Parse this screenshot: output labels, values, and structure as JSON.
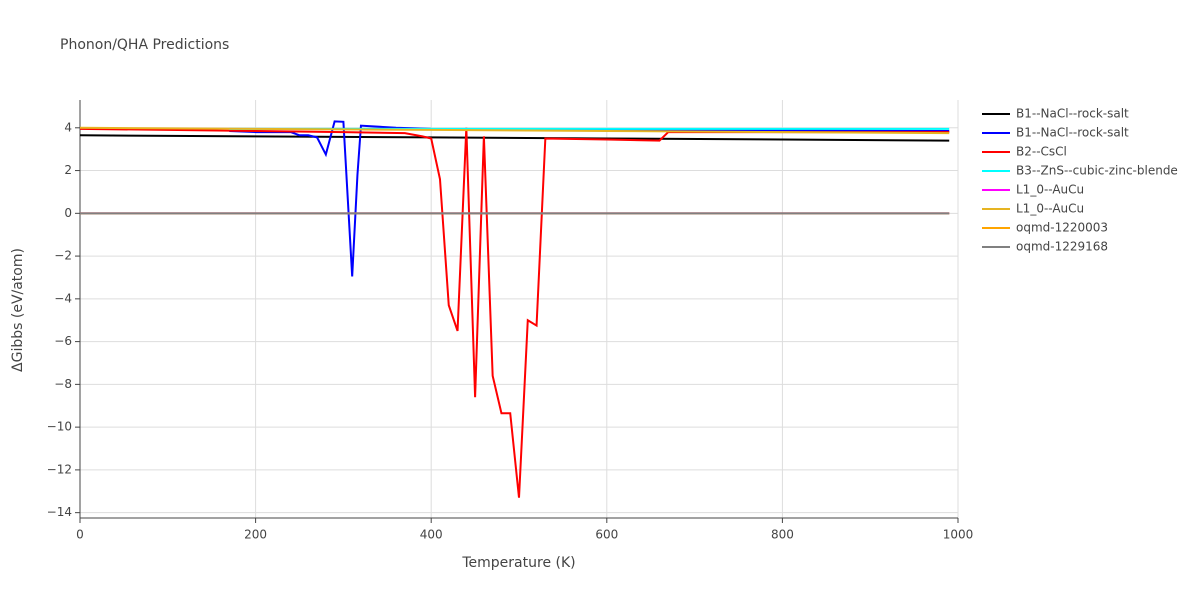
{
  "chart_data": {
    "type": "line",
    "title": "Phonon/QHA Predictions",
    "xlabel": "Temperature (K)",
    "ylabel": "ΔGibbs (eV/atom)",
    "xlim": [
      0,
      1000
    ],
    "ylim": [
      -14.25,
      5.3
    ],
    "xticks": [
      0,
      200,
      400,
      600,
      800,
      1000
    ],
    "yticks": [
      {
        "value": -14,
        "label": "−14"
      },
      {
        "value": -12,
        "label": "−12"
      },
      {
        "value": -10,
        "label": "−10"
      },
      {
        "value": -8,
        "label": "−8"
      },
      {
        "value": -6,
        "label": "−6"
      },
      {
        "value": -4,
        "label": "−4"
      },
      {
        "value": -2,
        "label": "−2"
      },
      0,
      2,
      4
    ],
    "grid": true,
    "series": [
      {
        "name": "B1--NaCl--rock-salt",
        "color": "#000000",
        "x": [
          0,
          200,
          400,
          600,
          800,
          990
        ],
        "values": [
          3.65,
          3.6,
          3.55,
          3.5,
          3.45,
          3.4
        ]
      },
      {
        "name": "B1--NaCl--rock-salt",
        "color": "#0000ff",
        "x": [
          170,
          200,
          240,
          250,
          260,
          270,
          280,
          290,
          300,
          310,
          316,
          320,
          360,
          400,
          600,
          800,
          990
        ],
        "values": [
          3.85,
          3.8,
          3.8,
          3.65,
          3.65,
          3.55,
          2.75,
          4.3,
          4.28,
          -2.95,
          1.8,
          4.1,
          4.0,
          3.95,
          3.9,
          3.88,
          3.85
        ]
      },
      {
        "name": "B2--CsCl",
        "color": "#ff0000",
        "x": [
          0,
          100,
          200,
          300,
          370,
          390,
          400,
          410,
          420,
          430,
          440,
          450,
          460,
          470,
          480,
          490,
          500,
          510,
          520,
          530,
          600,
          660,
          670,
          800,
          990
        ],
        "values": [
          3.95,
          3.9,
          3.85,
          3.8,
          3.75,
          3.6,
          3.5,
          1.6,
          -4.3,
          -5.5,
          4.0,
          -8.6,
          3.6,
          -7.6,
          -9.35,
          -9.35,
          -13.3,
          -5.0,
          -5.25,
          3.5,
          3.45,
          3.4,
          3.8,
          3.8,
          3.8
        ]
      },
      {
        "name": "B3--ZnS--cubic-zinc-blende",
        "color": "#00ffff",
        "x": [
          170,
          990
        ],
        "values": [
          3.95,
          3.95
        ]
      },
      {
        "name": "L1_0--AuCu",
        "color": "#ff00ff",
        "x": [
          0,
          990
        ],
        "values": [
          0,
          0
        ]
      },
      {
        "name": "L1_0--AuCu",
        "color": "#e6b422",
        "x": [
          0,
          200,
          400,
          600,
          800,
          990
        ],
        "values": [
          4.0,
          3.95,
          3.9,
          3.85,
          3.8,
          3.75
        ]
      },
      {
        "name": "oqmd-1220003",
        "color": "#ffa500",
        "x": [
          0,
          990
        ],
        "values": [
          0,
          0
        ]
      },
      {
        "name": "oqmd-1229168",
        "color": "#808080",
        "x": [
          0,
          990
        ],
        "values": [
          0,
          0
        ]
      }
    ]
  }
}
